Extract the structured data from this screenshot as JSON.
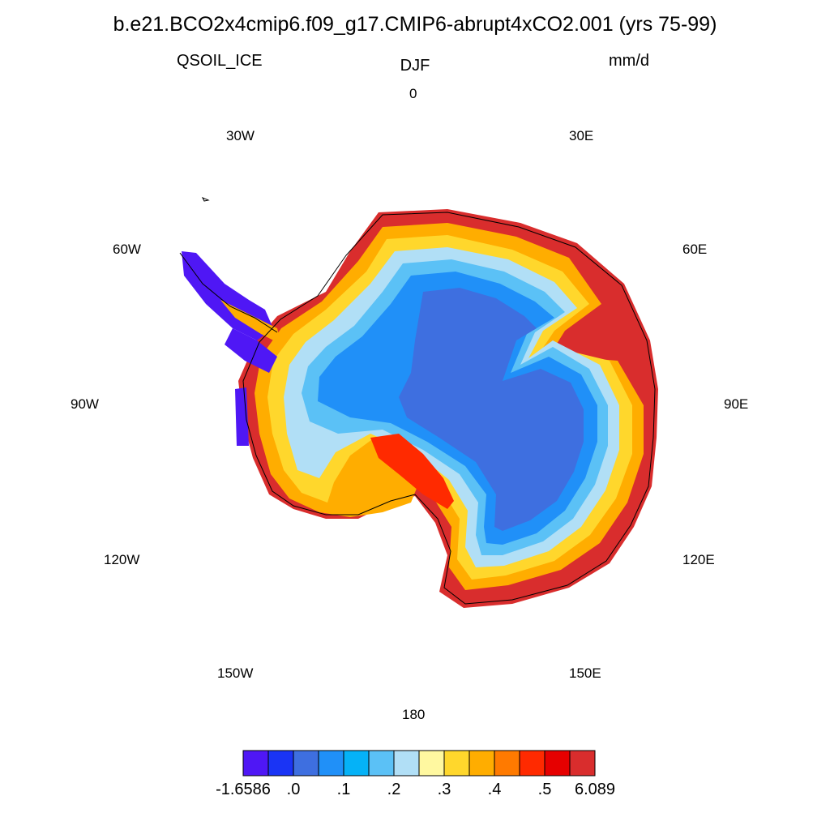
{
  "title": "b.e21.BCO2x4cmip6.f09_g17.CMIP6-abrupt4xCO2.001 (yrs 75-99)",
  "variable": "QSOIL_ICE",
  "season": "DJF",
  "units": "mm/d",
  "longitude_labels": {
    "lon0": "0",
    "lon30e": "30E",
    "lon60e": "60E",
    "lon90e": "90E",
    "lon120e": "120E",
    "lon150e": "150E",
    "lon180": "180",
    "lon150w": "150W",
    "lon120w": "120W",
    "lon90w": "90W",
    "lon60w": "60W",
    "lon30w": "30W"
  },
  "colorbar": {
    "colors": [
      "#4f17f5",
      "#1a34f5",
      "#3e6fe0",
      "#2090f8",
      "#05b2f7",
      "#5bc1f6",
      "#b1dff6",
      "#fff8a0",
      "#ffd72c",
      "#ffad00",
      "#ff7a00",
      "#ff2a00",
      "#e60000",
      "#d92d2d"
    ],
    "labels": [
      "-1.6586",
      ".0",
      ".1",
      ".2",
      ".3",
      ".4",
      ".5",
      "6.089"
    ]
  },
  "map_colors": {
    "interior": "#3e6fe0",
    "mid": "#2090f8",
    "light_blue": "#5bc1f6",
    "pale_blue": "#b1dff6",
    "pale_yellow": "#fff8a0",
    "yellow": "#ffd72c",
    "orange": "#ffad00",
    "red": "#ff2a00",
    "dark_red": "#d92d2d",
    "peninsula": "#4f17f5",
    "coastline": "#000000"
  }
}
